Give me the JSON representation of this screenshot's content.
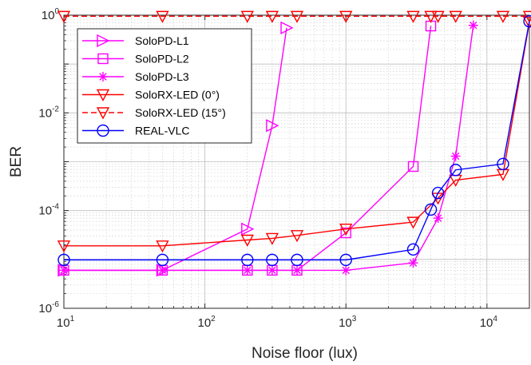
{
  "chart_data": {
    "type": "line",
    "xlabel": "Noise floor (lux)",
    "ylabel": "BER",
    "xscale": "log",
    "yscale": "log",
    "xlim": [
      10,
      20000
    ],
    "ylim": [
      1e-06,
      1
    ],
    "x_ticks": [
      {
        "base": "10",
        "exp": "1",
        "value": 10
      },
      {
        "base": "10",
        "exp": "2",
        "value": 100
      },
      {
        "base": "10",
        "exp": "3",
        "value": 1000
      },
      {
        "base": "10",
        "exp": "4",
        "value": 10000
      }
    ],
    "y_ticks": [
      {
        "base": "10",
        "exp": "-6",
        "value": 1e-06
      },
      {
        "base": "10",
        "exp": "-4",
        "value": 0.0001
      },
      {
        "base": "10",
        "exp": "-2",
        "value": 0.01
      },
      {
        "base": "10",
        "exp": "0",
        "value": 1
      }
    ],
    "grid": "major and minor",
    "legend_position": "top-left",
    "series": [
      {
        "name": "SoloPD-L1",
        "color": "#ff00ff",
        "marker": "triangle-right",
        "line": "solid",
        "x": [
          10,
          50,
          200,
          300,
          380
        ],
        "y": [
          6e-06,
          6e-06,
          4.2e-05,
          0.0055,
          0.55
        ]
      },
      {
        "name": "SoloPD-L2",
        "color": "#ff00ff",
        "marker": "square",
        "line": "solid",
        "x": [
          10,
          50,
          200,
          300,
          450,
          1000,
          3000,
          4000
        ],
        "y": [
          6e-06,
          6e-06,
          6e-06,
          6e-06,
          6e-06,
          3.5e-05,
          0.0008,
          0.6
        ]
      },
      {
        "name": "SoloPD-L3",
        "color": "#ff00ff",
        "marker": "star",
        "line": "solid",
        "x": [
          10,
          50,
          200,
          300,
          450,
          1000,
          3000,
          4500,
          6000,
          8000
        ],
        "y": [
          6e-06,
          6e-06,
          6e-06,
          6e-06,
          6e-06,
          6e-06,
          8.5e-06,
          7e-05,
          0.0013,
          0.62
        ]
      },
      {
        "name": "SoloRX-LED (0°)",
        "color": "#ff0000",
        "marker": "triangle-down",
        "line": "solid",
        "x": [
          10,
          50,
          200,
          300,
          450,
          1000,
          3000,
          4500,
          6000,
          13000,
          20000
        ],
        "y": [
          1.9e-05,
          1.9e-05,
          2.5e-05,
          2.7e-05,
          3.1e-05,
          4.2e-05,
          5.8e-05,
          0.00018,
          0.00042,
          0.00055,
          0.72
        ]
      },
      {
        "name": "SoloRX-LED (15°)",
        "color": "#ff0000",
        "marker": "triangle-down",
        "line": "dashed",
        "x": [
          10,
          50,
          200,
          300,
          450,
          1000,
          3000,
          4000,
          4500,
          6000,
          13000,
          20000
        ],
        "y": [
          0.95,
          0.95,
          0.95,
          0.95,
          0.95,
          0.95,
          0.95,
          0.95,
          0.95,
          0.95,
          0.95,
          0.95
        ]
      },
      {
        "name": "REAL-VLC",
        "color": "#0000ff",
        "marker": "circle",
        "line": "solid",
        "x": [
          10,
          50,
          200,
          300,
          450,
          1000,
          3000,
          4000,
          4500,
          6000,
          13000,
          20000
        ],
        "y": [
          9.8e-06,
          9.8e-06,
          9.8e-06,
          9.8e-06,
          9.8e-06,
          9.8e-06,
          1.6e-05,
          0.000105,
          0.00023,
          0.00068,
          0.0009,
          0.75
        ]
      }
    ]
  }
}
